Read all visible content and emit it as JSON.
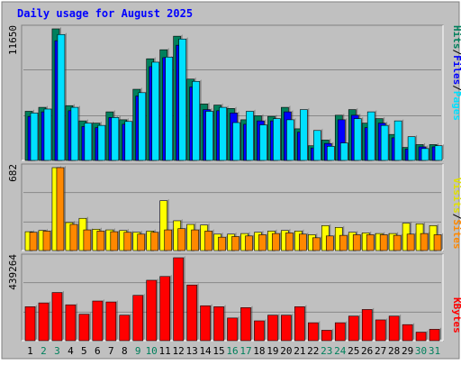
{
  "chart_data": [
    {
      "type": "bar",
      "title": "Daily usage for August 2025",
      "categories": [
        "1",
        "2",
        "3",
        "4",
        "5",
        "6",
        "7",
        "8",
        "9",
        "10",
        "11",
        "12",
        "13",
        "14",
        "15",
        "16",
        "17",
        "18",
        "19",
        "20",
        "21",
        "22",
        "23",
        "24",
        "25",
        "26",
        "27",
        "28",
        "29",
        "30",
        "31"
      ],
      "weekend_days": [
        "2",
        "3",
        "9",
        "10",
        "16",
        "17",
        "23",
        "24",
        "30",
        "31"
      ],
      "ymax_label": "11650",
      "ylim": [
        0,
        11650
      ],
      "series": [
        {
          "name": "Hits",
          "color": "#00805c",
          "values": [
            4350,
            4700,
            11650,
            4850,
            3500,
            3300,
            4300,
            3600,
            6300,
            9000,
            9800,
            11000,
            7200,
            5000,
            4900,
            4600,
            3600,
            3950,
            3900,
            4700,
            2800,
            1300,
            1800,
            4000,
            4500,
            3300,
            3700,
            2300,
            1150,
            1400,
            1400
          ]
        },
        {
          "name": "Files",
          "color": "#0000ff",
          "values": [
            3900,
            4300,
            10600,
            4400,
            3000,
            2900,
            3800,
            3200,
            5700,
            8300,
            9100,
            10200,
            6500,
            4500,
            4400,
            4200,
            3200,
            3500,
            3500,
            4300,
            2500,
            1100,
            1500,
            3600,
            4000,
            2900,
            3300,
            2000,
            1000,
            1200,
            1200
          ]
        },
        {
          "name": "Pages",
          "color": "#00e0ff",
          "values": [
            4200,
            4550,
            11150,
            4700,
            3300,
            3100,
            3800,
            3450,
            6000,
            8700,
            9150,
            10750,
            7000,
            4350,
            4700,
            3350,
            4350,
            3150,
            3700,
            3600,
            4500,
            2650,
            1250,
            1550,
            3700,
            4300,
            3100,
            3500,
            2100,
            1050,
            1300
          ]
        }
      ]
    },
    {
      "type": "bar",
      "ymax_label": "682",
      "ylim": [
        0,
        682
      ],
      "series": [
        {
          "name": "Visits",
          "color": "#ffff00",
          "values": [
            155,
            165,
            682,
            230,
            265,
            175,
            170,
            165,
            150,
            160,
            410,
            245,
            215,
            210,
            135,
            135,
            140,
            150,
            160,
            165,
            160,
            130,
            205,
            190,
            150,
            145,
            140,
            140,
            225,
            220,
            205
          ]
        },
        {
          "name": "Sites",
          "color": "#ff8800",
          "values": [
            150,
            160,
            682,
            215,
            170,
            160,
            155,
            150,
            135,
            150,
            170,
            180,
            170,
            160,
            110,
            115,
            120,
            130,
            140,
            145,
            135,
            105,
            120,
            125,
            130,
            130,
            130,
            125,
            135,
            140,
            130
          ]
        }
      ]
    },
    {
      "type": "bar",
      "ymax_label": "439264",
      "ylim": [
        0,
        439264
      ],
      "series": [
        {
          "name": "KBytes",
          "color": "#ff0000",
          "values": [
            180000,
            200000,
            255000,
            190000,
            140000,
            210000,
            205000,
            135000,
            240000,
            320000,
            340000,
            439264,
            295000,
            185000,
            180000,
            120000,
            175000,
            105000,
            135000,
            135000,
            180000,
            95000,
            55000,
            95000,
            130000,
            165000,
            110000,
            130000,
            85000,
            45000,
            60000
          ]
        }
      ]
    }
  ],
  "legend": {
    "top": {
      "pages": "Pages",
      "files": "Files",
      "hits": "Hits",
      "sep": "/"
    },
    "middle": {
      "sites": "Sites",
      "visits": "Visits",
      "sep": "/"
    },
    "bottom": {
      "kbytes": "KBytes"
    }
  },
  "colors": {
    "background": "#c0c0c0",
    "frame_light": "#ffffff",
    "frame_dark": "#808080",
    "gridline": "#888888",
    "title": "#0000ff",
    "weekday_label": "#000000",
    "weekend_label": "#00805c"
  }
}
